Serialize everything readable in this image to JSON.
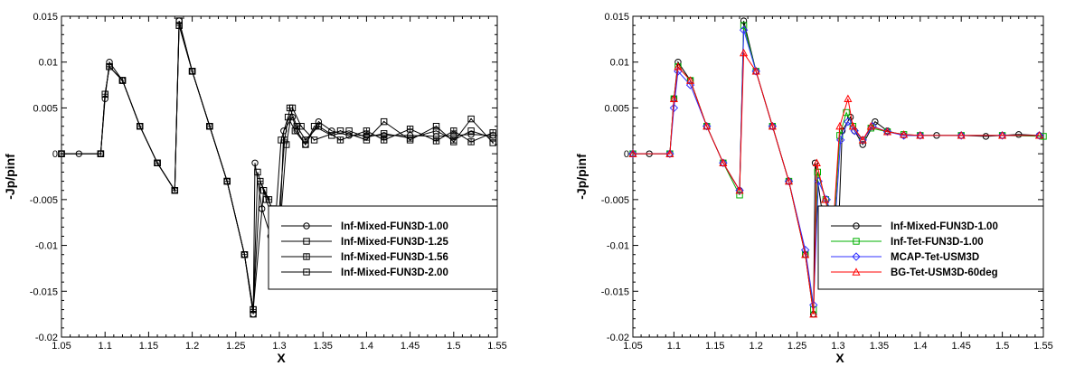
{
  "chart_data": [
    {
      "type": "line",
      "xlabel": "X",
      "ylabel": "-Jp/pinf",
      "xlim": [
        1.05,
        1.55
      ],
      "ylim": [
        -0.02,
        0.015
      ],
      "xticks": [
        1.05,
        1.1,
        1.15,
        1.2,
        1.25,
        1.3,
        1.35,
        1.4,
        1.45,
        1.5,
        1.55
      ],
      "yticks": [
        0.015,
        0.01,
        0.005,
        0,
        -0.005,
        -0.01,
        -0.015,
        -0.02
      ],
      "xtick_labels": [
        "1.05",
        "1.1",
        "1.15",
        "1.2",
        "1.25",
        "1.3",
        "1.35",
        "1.4",
        "1.45",
        "1.5",
        "1.55"
      ],
      "ytick_labels": [
        "0.015",
        "0.01",
        "0.005",
        "0",
        "-0.005",
        "-0.01",
        "-0.015",
        "-0.02"
      ],
      "legend_position": "bottom-right",
      "grid": false,
      "series": [
        {
          "name": "Inf-Mixed-FUN3D-1.00",
          "color": "#000000",
          "marker": "circle",
          "marker_color": "#000000",
          "x": [
            1.05,
            1.07,
            1.095,
            1.1,
            1.105,
            1.12,
            1.14,
            1.16,
            1.18,
            1.185,
            1.2,
            1.22,
            1.24,
            1.26,
            1.27,
            1.272,
            1.28,
            1.29,
            1.3,
            1.305,
            1.315,
            1.32,
            1.33,
            1.345,
            1.36,
            1.38,
            1.4,
            1.42,
            1.45,
            1.48,
            1.5,
            1.52,
            1.545
          ],
          "y": [
            0,
            0,
            0,
            0.006,
            0.01,
            0.008,
            0.003,
            -0.001,
            -0.004,
            0.0145,
            0.009,
            0.003,
            -0.003,
            -0.011,
            -0.0175,
            -0.001,
            -0.006,
            -0.009,
            -0.0095,
            0.0025,
            0.004,
            0.0025,
            0.001,
            0.0035,
            0.0025,
            0.002,
            0.002,
            0.002,
            0.002,
            0.0019,
            0.002,
            0.0021,
            0.002
          ]
        },
        {
          "name": "Inf-Mixed-FUN3D-1.25",
          "color": "#000000",
          "marker": "square",
          "marker_color": "#000000",
          "x": [
            1.05,
            1.095,
            1.1,
            1.105,
            1.12,
            1.14,
            1.16,
            1.18,
            1.185,
            1.2,
            1.22,
            1.24,
            1.26,
            1.27,
            1.275,
            1.285,
            1.295,
            1.302,
            1.31,
            1.318,
            1.33,
            1.34,
            1.36,
            1.38,
            1.4,
            1.42,
            1.45,
            1.48,
            1.5,
            1.52,
            1.545
          ],
          "y": [
            0,
            0,
            0.0065,
            0.0095,
            0.008,
            0.003,
            -0.001,
            -0.004,
            0.0145,
            0.009,
            0.003,
            -0.003,
            -0.011,
            -0.0175,
            -0.002,
            -0.005,
            -0.008,
            0.0015,
            0.004,
            0.0025,
            0.001,
            0.003,
            0.002,
            0.0025,
            0.0018,
            0.0022,
            0.0017,
            0.0025,
            0.0015,
            0.0025,
            0.0017
          ]
        },
        {
          "name": "Inf-Mixed-FUN3D-1.56",
          "color": "#000000",
          "marker": "square-hatched",
          "marker_color": "#000000",
          "x": [
            1.05,
            1.095,
            1.1,
            1.105,
            1.12,
            1.14,
            1.16,
            1.18,
            1.185,
            1.2,
            1.22,
            1.24,
            1.26,
            1.27,
            1.278,
            1.288,
            1.298,
            1.306,
            1.312,
            1.32,
            1.33,
            1.345,
            1.37,
            1.4,
            1.42,
            1.45,
            1.48,
            1.5,
            1.52,
            1.545
          ],
          "y": [
            0,
            0,
            0.0065,
            0.0095,
            0.008,
            0.003,
            -0.001,
            -0.004,
            0.014,
            0.009,
            0.003,
            -0.003,
            -0.011,
            -0.017,
            -0.003,
            -0.005,
            -0.0085,
            0.0015,
            0.005,
            0.003,
            0.0015,
            0.003,
            0.0015,
            0.0025,
            0.0015,
            0.0027,
            0.0014,
            0.0025,
            0.0013,
            0.0023
          ]
        },
        {
          "name": "Inf-Mixed-FUN3D-2.00",
          "color": "#000000",
          "marker": "square-dot",
          "marker_color": "#000000",
          "x": [
            1.05,
            1.095,
            1.1,
            1.105,
            1.12,
            1.14,
            1.16,
            1.18,
            1.185,
            1.2,
            1.22,
            1.24,
            1.26,
            1.27,
            1.282,
            1.292,
            1.3,
            1.308,
            1.315,
            1.325,
            1.34,
            1.37,
            1.4,
            1.42,
            1.45,
            1.48,
            1.5,
            1.52,
            1.545
          ],
          "y": [
            0,
            0,
            0.0065,
            0.0095,
            0.008,
            0.003,
            -0.001,
            -0.004,
            0.014,
            0.009,
            0.003,
            -0.003,
            -0.011,
            -0.017,
            -0.004,
            -0.006,
            -0.009,
            0.001,
            0.005,
            0.003,
            0.0015,
            0.0025,
            0.0015,
            0.0035,
            0.0015,
            0.003,
            0.0013,
            0.0038,
            0.0012
          ]
        }
      ]
    },
    {
      "type": "line",
      "xlabel": "X",
      "ylabel": "-Jp/pinf",
      "xlim": [
        1.05,
        1.55
      ],
      "ylim": [
        -0.02,
        0.015
      ],
      "xticks": [
        1.05,
        1.1,
        1.15,
        1.2,
        1.25,
        1.3,
        1.35,
        1.4,
        1.45,
        1.5,
        1.55
      ],
      "yticks": [
        0.015,
        0.01,
        0.005,
        0,
        -0.005,
        -0.01,
        -0.015,
        -0.02
      ],
      "xtick_labels": [
        "1.05",
        "1.1",
        "1.15",
        "1.2",
        "1.25",
        "1.3",
        "1.35",
        "1.4",
        "1.45",
        "1.5",
        "1.55"
      ],
      "ytick_labels": [
        "0.015",
        "0.01",
        "0.005",
        "0",
        "-0.005",
        "-0.01",
        "-0.015",
        "-0.02"
      ],
      "legend_position": "bottom-right",
      "grid": false,
      "series": [
        {
          "name": "Inf-Mixed-FUN3D-1.00",
          "color": "#000000",
          "marker": "circle",
          "marker_color": "#000000",
          "x": [
            1.05,
            1.07,
            1.095,
            1.1,
            1.105,
            1.12,
            1.14,
            1.16,
            1.18,
            1.185,
            1.2,
            1.22,
            1.24,
            1.26,
            1.27,
            1.272,
            1.28,
            1.29,
            1.3,
            1.305,
            1.315,
            1.32,
            1.33,
            1.345,
            1.36,
            1.38,
            1.4,
            1.42,
            1.45,
            1.48,
            1.5,
            1.52,
            1.545
          ],
          "y": [
            0,
            0,
            0,
            0.006,
            0.01,
            0.008,
            0.003,
            -0.001,
            -0.004,
            0.0145,
            0.009,
            0.003,
            -0.003,
            -0.011,
            -0.0175,
            -0.001,
            -0.006,
            -0.009,
            -0.0095,
            0.0025,
            0.004,
            0.0025,
            0.001,
            0.0035,
            0.0025,
            0.002,
            0.002,
            0.002,
            0.002,
            0.0019,
            0.002,
            0.0021,
            0.002
          ]
        },
        {
          "name": "Inf-Tet-FUN3D-1.00",
          "color": "#00b000",
          "marker": "square",
          "marker_color": "#00b000",
          "x": [
            1.05,
            1.095,
            1.1,
            1.105,
            1.12,
            1.14,
            1.16,
            1.18,
            1.185,
            1.2,
            1.22,
            1.24,
            1.26,
            1.27,
            1.275,
            1.285,
            1.295,
            1.302,
            1.31,
            1.318,
            1.33,
            1.34,
            1.36,
            1.38,
            1.4,
            1.45,
            1.5,
            1.55
          ],
          "y": [
            0,
            0,
            0.006,
            0.0095,
            0.008,
            0.003,
            -0.001,
            -0.0045,
            0.014,
            0.009,
            0.003,
            -0.003,
            -0.011,
            -0.017,
            -0.002,
            -0.005,
            -0.008,
            0.002,
            0.0045,
            0.003,
            0.0015,
            0.0028,
            0.0024,
            0.0021,
            0.002,
            0.002,
            0.002,
            0.0019
          ]
        },
        {
          "name": "MCAP-Tet-USM3D",
          "color": "#3030ff",
          "marker": "diamond",
          "marker_color": "#3030ff",
          "x": [
            1.05,
            1.095,
            1.1,
            1.105,
            1.12,
            1.14,
            1.16,
            1.18,
            1.185,
            1.2,
            1.22,
            1.24,
            1.26,
            1.27,
            1.276,
            1.286,
            1.296,
            1.303,
            1.312,
            1.32,
            1.33,
            1.342,
            1.36,
            1.38,
            1.4,
            1.45,
            1.5,
            1.545
          ],
          "y": [
            0,
            0,
            0.005,
            0.009,
            0.0075,
            0.003,
            -0.001,
            -0.004,
            0.0135,
            0.009,
            0.003,
            -0.003,
            -0.0105,
            -0.0165,
            -0.003,
            -0.005,
            -0.008,
            0.0015,
            0.0035,
            0.0025,
            0.0015,
            0.003,
            0.0024,
            0.002,
            0.002,
            0.002,
            0.002,
            0.002
          ]
        },
        {
          "name": "BG-Tet-USM3D-60deg",
          "color": "#ff0000",
          "marker": "triangle",
          "marker_color": "#ff0000",
          "x": [
            1.05,
            1.095,
            1.1,
            1.105,
            1.12,
            1.14,
            1.16,
            1.18,
            1.185,
            1.2,
            1.22,
            1.24,
            1.26,
            1.27,
            1.274,
            1.284,
            1.294,
            1.302,
            1.312,
            1.318,
            1.33,
            1.34,
            1.36,
            1.38,
            1.4,
            1.45,
            1.5,
            1.545
          ],
          "y": [
            0,
            0,
            0.006,
            0.0095,
            0.008,
            0.003,
            -0.001,
            -0.004,
            0.011,
            0.009,
            0.003,
            -0.003,
            -0.011,
            -0.0175,
            -0.001,
            -0.005,
            -0.008,
            0.003,
            0.006,
            0.003,
            0.0015,
            0.003,
            0.0024,
            0.0021,
            0.002,
            0.002,
            0.002,
            0.002
          ]
        }
      ]
    }
  ]
}
